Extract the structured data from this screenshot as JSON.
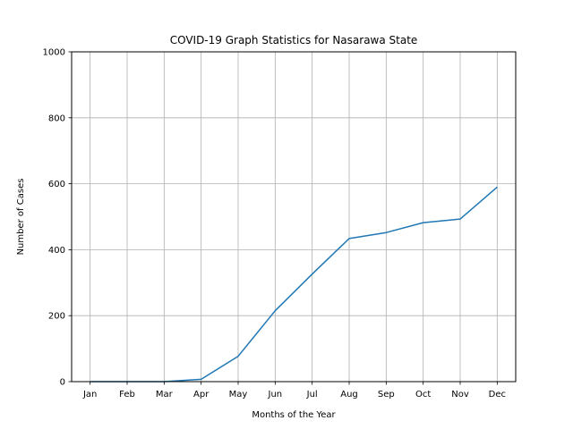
{
  "chart_data": {
    "type": "line",
    "title": "COVID-19 Graph Statistics for Nasarawa State",
    "xlabel": "Months of the Year",
    "ylabel": "Number of Cases",
    "categories": [
      "Jan",
      "Feb",
      "Mar",
      "Apr",
      "May",
      "Jun",
      "Jul",
      "Aug",
      "Sep",
      "Oct",
      "Nov",
      "Dec"
    ],
    "series": [
      {
        "values": [
          0,
          0,
          0,
          7,
          77,
          215,
          326,
          434,
          452,
          482,
          493,
          590
        ],
        "color": "#1f77b4"
      }
    ],
    "ylim": [
      0,
      1000
    ],
    "yticks": [
      "0",
      "200",
      "400",
      "600",
      "800",
      "1000"
    ],
    "grid": true
  }
}
